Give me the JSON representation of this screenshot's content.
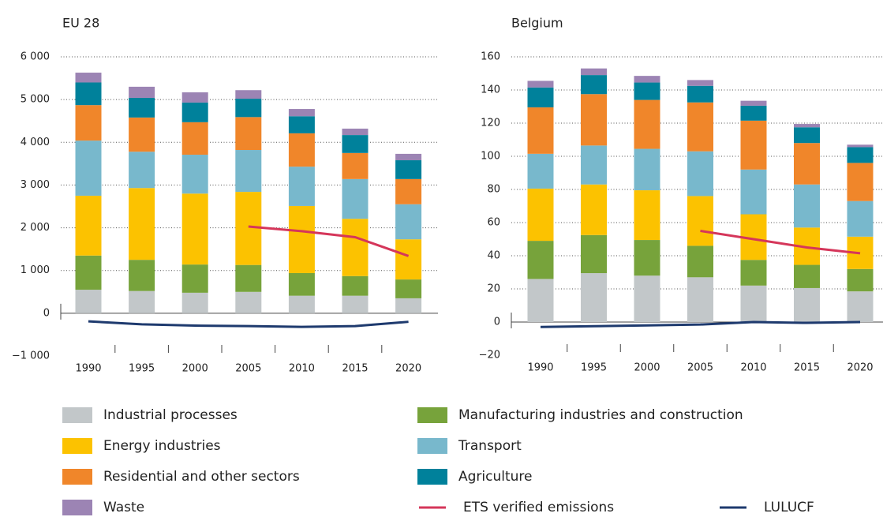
{
  "chart_data": [
    {
      "type": "bar",
      "stacked": true,
      "title": "EU 28",
      "categories": [
        "1990",
        "1995",
        "2000",
        "2005",
        "2010",
        "2015",
        "2020"
      ],
      "ylim": [
        -1000,
        6000
      ],
      "yticks": [
        {
          "value": -1000,
          "label": "−1 000"
        },
        0,
        {
          "value": 1000,
          "label": "1 000"
        },
        {
          "value": 2000,
          "label": "2 000"
        },
        {
          "value": 3000,
          "label": "3 000"
        },
        {
          "value": 4000,
          "label": "4 000"
        },
        {
          "value": 5000,
          "label": "5 000"
        },
        {
          "value": 6000,
          "label": "6 000"
        }
      ],
      "grid": true,
      "series": [
        {
          "name": "Industrial processes",
          "color": "#c2c7c9",
          "values": [
            550,
            520,
            480,
            500,
            410,
            410,
            350
          ]
        },
        {
          "name": "Manufacturing industries and construction",
          "color": "#77a33b",
          "values": [
            800,
            730,
            660,
            630,
            530,
            460,
            440
          ]
        },
        {
          "name": "Energy industries",
          "color": "#fcc200",
          "values": [
            1400,
            1680,
            1660,
            1710,
            1570,
            1340,
            940
          ]
        },
        {
          "name": "Transport",
          "color": "#78b8cc",
          "values": [
            1290,
            850,
            910,
            980,
            920,
            930,
            820
          ]
        },
        {
          "name": "Residential and other sectors",
          "color": "#f0862a",
          "values": [
            830,
            800,
            760,
            770,
            780,
            610,
            590
          ]
        },
        {
          "name": "Agriculture",
          "color": "#00819b",
          "values": [
            530,
            460,
            460,
            430,
            400,
            420,
            440
          ]
        },
        {
          "name": "Waste",
          "color": "#9c84b4",
          "values": [
            230,
            260,
            240,
            200,
            170,
            150,
            150
          ]
        },
        {
          "name": "ETS verified emissions",
          "type": "line",
          "color": "#d5365a",
          "values": [
            null,
            null,
            null,
            2030,
            1920,
            1780,
            1340
          ]
        },
        {
          "name": "LULUCF",
          "type": "line",
          "color": "#1e3a6e",
          "values": [
            -190,
            -260,
            -290,
            -300,
            -320,
            -300,
            -200
          ]
        }
      ]
    },
    {
      "type": "bar",
      "stacked": true,
      "title": "Belgium",
      "categories": [
        "1990",
        "1995",
        "2000",
        "2005",
        "2010",
        "2015",
        "2020"
      ],
      "ylim": [
        -20,
        160
      ],
      "yticks": [
        {
          "value": -20,
          "label": "−20"
        },
        0,
        20,
        40,
        60,
        80,
        100,
        120,
        140,
        160
      ],
      "grid": true,
      "series": [
        {
          "name": "Industrial processes",
          "color": "#c2c7c9",
          "values": [
            26,
            29.5,
            28,
            27,
            22,
            20.5,
            18.5
          ]
        },
        {
          "name": "Manufacturing industries and construction",
          "color": "#77a33b",
          "values": [
            23,
            23,
            21.5,
            19,
            15.5,
            14,
            13.5
          ]
        },
        {
          "name": "Energy industries",
          "color": "#fcc200",
          "values": [
            31.5,
            30.5,
            30,
            30,
            27.5,
            22.5,
            19.5
          ]
        },
        {
          "name": "Transport",
          "color": "#78b8cc",
          "values": [
            21,
            23.5,
            25,
            27,
            27,
            26,
            21.5
          ]
        },
        {
          "name": "Residential and other sectors",
          "color": "#f0862a",
          "values": [
            28,
            31,
            29.5,
            29.5,
            29.5,
            25,
            23
          ]
        },
        {
          "name": "Agriculture",
          "color": "#00819b",
          "values": [
            12,
            11.5,
            10.5,
            10,
            9,
            9.5,
            9.5
          ]
        },
        {
          "name": "Waste",
          "color": "#9c84b4",
          "values": [
            4,
            4,
            4,
            3.5,
            3,
            2,
            1.5
          ]
        },
        {
          "name": "ETS verified emissions",
          "type": "line",
          "color": "#d5365a",
          "values": [
            null,
            null,
            null,
            55,
            50,
            45,
            41.5
          ]
        },
        {
          "name": "LULUCF",
          "type": "line",
          "color": "#1e3a6e",
          "values": [
            -3,
            -2.5,
            -2,
            -1.5,
            0,
            -0.5,
            0
          ]
        }
      ]
    }
  ]
}
